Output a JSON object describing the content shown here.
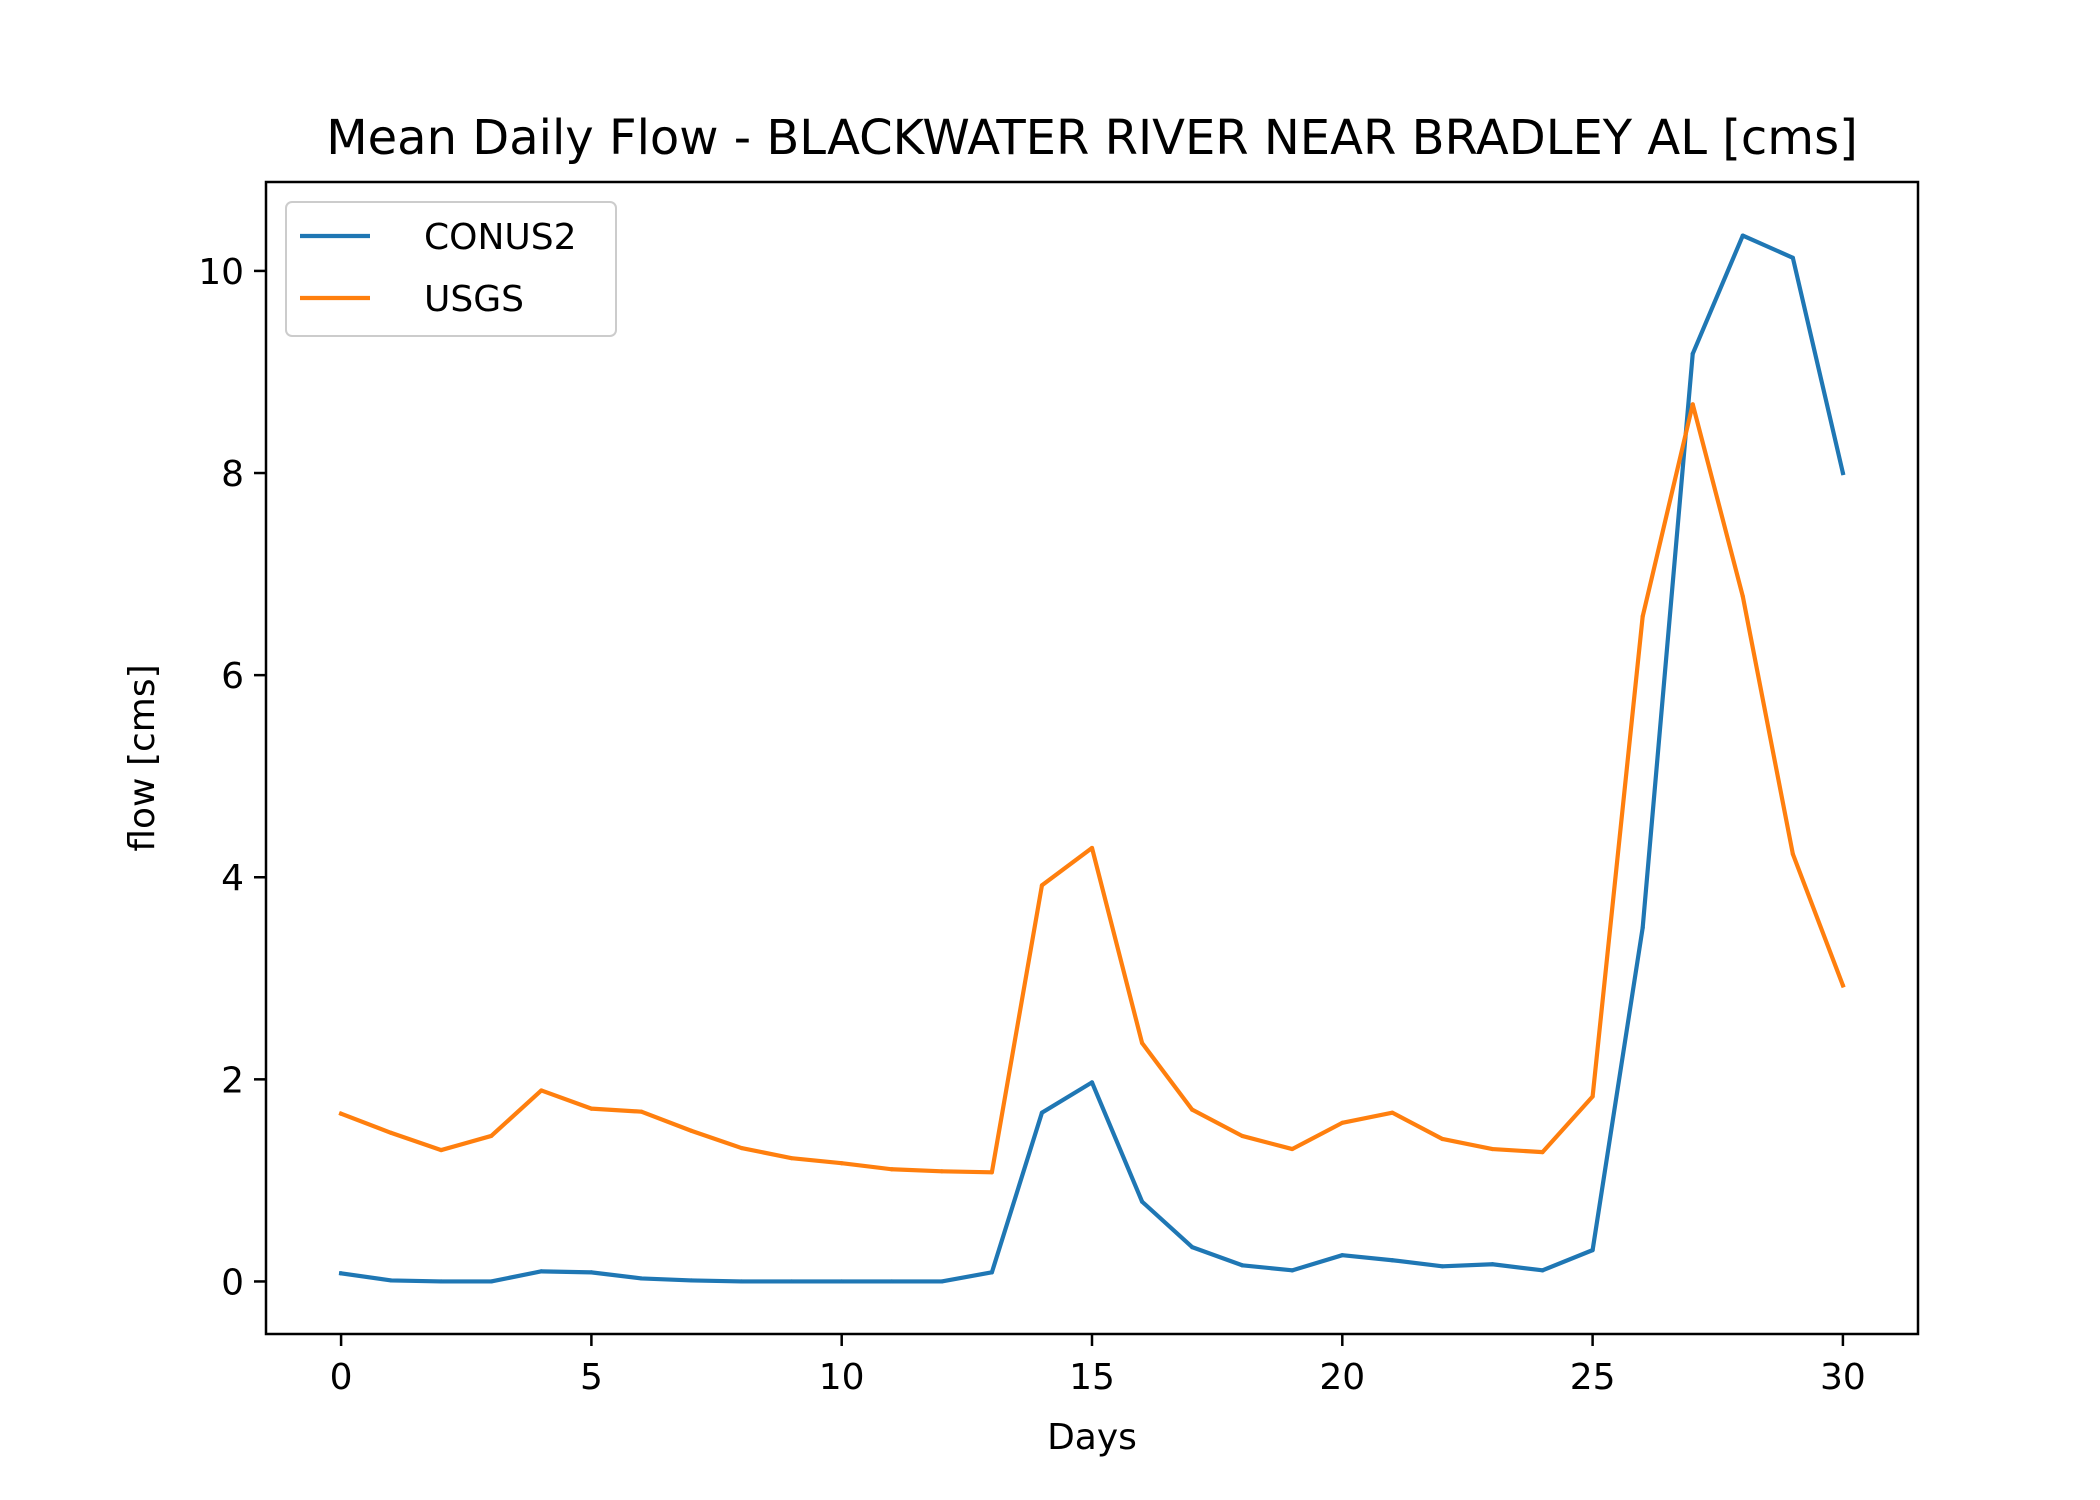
{
  "chart_data": {
    "type": "line",
    "title": "Mean Daily Flow - BLACKWATER RIVER NEAR BRADLEY AL [cms]",
    "xlabel": "Days",
    "ylabel": "flow [cms]",
    "xlim": [
      -1.5,
      31.5
    ],
    "ylim": [
      -0.52,
      10.88
    ],
    "xticks": [
      0,
      5,
      10,
      15,
      20,
      25,
      30
    ],
    "yticks": [
      0,
      2,
      4,
      6,
      8,
      10
    ],
    "grid": false,
    "legend_position": "top-left",
    "x": [
      0,
      1,
      2,
      3,
      4,
      5,
      6,
      7,
      8,
      9,
      10,
      11,
      12,
      13,
      14,
      15,
      16,
      17,
      18,
      19,
      20,
      21,
      22,
      23,
      24,
      25,
      26,
      27,
      28,
      29,
      30
    ],
    "series": [
      {
        "name": "CONUS2",
        "color": "#1f77b4",
        "values": [
          0.08,
          0.01,
          0.0,
          0.0,
          0.1,
          0.09,
          0.03,
          0.01,
          0.0,
          0.0,
          0.0,
          0.0,
          0.0,
          0.09,
          1.67,
          1.97,
          0.79,
          0.34,
          0.16,
          0.11,
          0.26,
          0.21,
          0.15,
          0.17,
          0.11,
          0.31,
          3.5,
          9.18,
          10.35,
          10.13,
          8.0
        ]
      },
      {
        "name": "USGS",
        "color": "#ff7f0e",
        "values": [
          1.66,
          1.47,
          1.3,
          1.44,
          1.89,
          1.71,
          1.68,
          1.49,
          1.32,
          1.22,
          1.17,
          1.11,
          1.09,
          1.08,
          3.92,
          4.29,
          2.36,
          1.7,
          1.44,
          1.31,
          1.57,
          1.67,
          1.41,
          1.31,
          1.28,
          1.83,
          6.58,
          8.68,
          6.78,
          4.23,
          2.93
        ]
      }
    ]
  }
}
